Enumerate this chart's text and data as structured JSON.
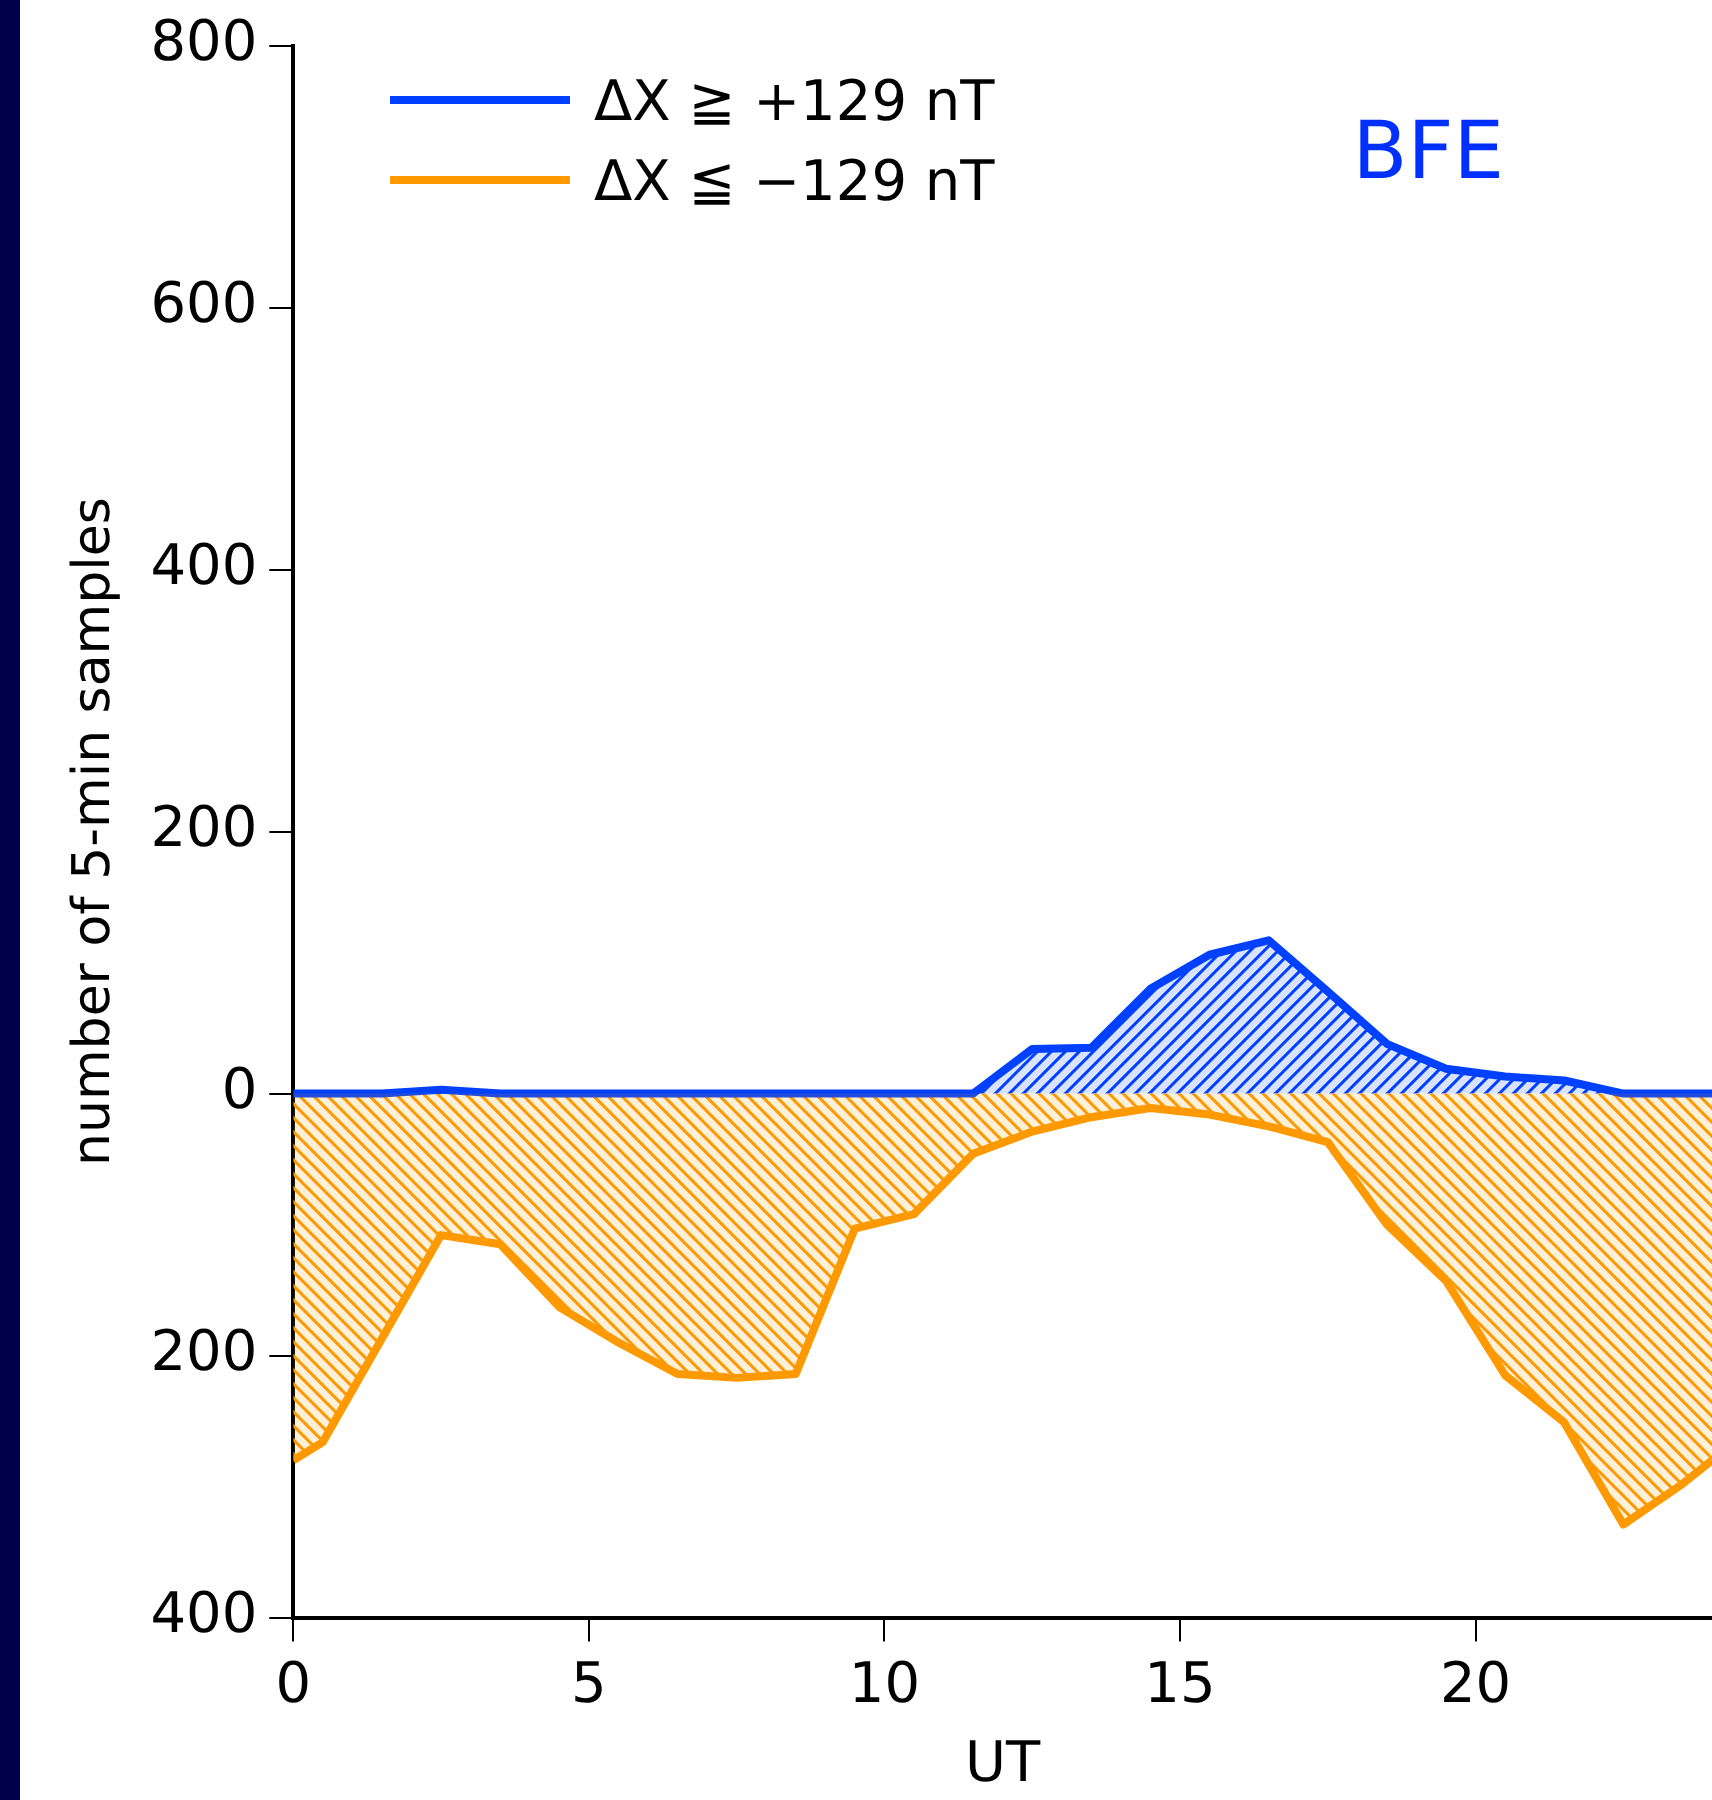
{
  "chart_data": {
    "type": "area",
    "title": "BFE",
    "xlabel": "UT",
    "ylabel": "number of 5-min samples",
    "x": [
      0,
      0.5,
      1.5,
      2.5,
      3.5,
      4.5,
      5.5,
      6.5,
      7.5,
      8.5,
      9.5,
      10.5,
      11.5,
      12.5,
      13.5,
      14.5,
      15.5,
      16.5,
      17.5,
      18.5,
      19.5,
      20.5,
      21.5,
      22.5,
      23.5,
      24
    ],
    "series": [
      {
        "name": "ΔX ≧ +129 nT",
        "color": "#0040ff",
        "values": [
          0,
          0,
          0,
          3,
          0,
          0,
          0,
          0,
          0,
          0,
          0,
          0,
          0,
          34,
          35,
          80,
          106,
          117,
          78,
          38,
          19,
          13,
          10,
          0,
          0,
          0
        ]
      },
      {
        "name": "ΔX ≦ −129 nT",
        "color": "#ff9900",
        "values": [
          -280,
          -266,
          -187,
          -108,
          -115,
          -163,
          -190,
          -214,
          -217,
          -214,
          -103,
          -92,
          -46,
          -29,
          -18,
          -11,
          -16,
          -25,
          -37,
          -100,
          -143,
          -215,
          -251,
          -329,
          -298,
          -280
        ]
      }
    ],
    "xlim": [
      0,
      24
    ],
    "xticks": [
      0,
      5,
      10,
      15,
      20
    ],
    "ylim": [
      -400,
      800
    ],
    "yticks": [
      {
        "value": -400,
        "label": "400"
      },
      {
        "value": -200,
        "label": "200"
      },
      0,
      200,
      400,
      600,
      800
    ],
    "grid": false,
    "legend": "top left",
    "marker": "none",
    "line_style": "solid"
  }
}
